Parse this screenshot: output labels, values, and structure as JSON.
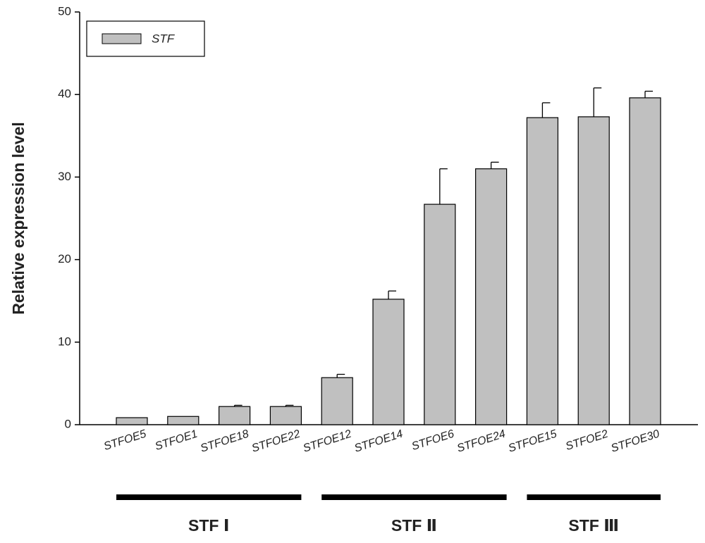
{
  "chart_data": {
    "type": "bar",
    "y_label": "Relative expression level",
    "categories": [
      "STFOE5",
      "STFOE1",
      "STFOE18",
      "STFOE22",
      "STFOE12",
      "STFOE14",
      "STFOE6",
      "STFOE24",
      "STFOE15",
      "STFOE2",
      "STFOE30"
    ],
    "series": [
      {
        "name": "STF",
        "color": "#c0c0c0",
        "values": [
          0.85,
          1.0,
          2.2,
          2.2,
          5.7,
          15.2,
          26.7,
          31.0,
          37.2,
          37.3,
          39.6
        ],
        "errors": [
          0,
          0,
          0.15,
          0.15,
          0.4,
          1.0,
          4.3,
          0.8,
          1.8,
          3.5,
          0.8
        ]
      }
    ],
    "ylim": [
      0,
      50
    ],
    "yticks": [
      0,
      10,
      20,
      30,
      40,
      50
    ],
    "legend": "top-left",
    "groups": [
      {
        "label": "STF Ⅰ",
        "start": 0,
        "end": 3
      },
      {
        "label": "STF Ⅱ",
        "start": 4,
        "end": 7
      },
      {
        "label": "STF Ⅲ",
        "start": 8,
        "end": 10
      }
    ]
  }
}
